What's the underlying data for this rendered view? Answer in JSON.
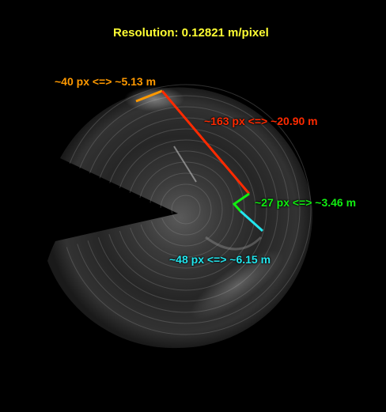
{
  "resolution_text": "Resolution: 0.12821 m/pixel",
  "colors": {
    "resolution": "#ffff33",
    "orange": "#ff9900",
    "red": "#ff2a00",
    "green": "#11ee11",
    "cyan": "#22e6ee"
  },
  "measurements": [
    {
      "id": "orange",
      "text": "~40 px <=> ~5.13 m",
      "color_key": "orange"
    },
    {
      "id": "red",
      "text": "~163 px <=> ~20.90 m",
      "color_key": "red"
    },
    {
      "id": "green",
      "text": "~27 px <=> ~3.46 m",
      "color_key": "green"
    },
    {
      "id": "cyan",
      "text": "~48 px <=> ~6.15 m",
      "color_key": "cyan"
    }
  ]
}
